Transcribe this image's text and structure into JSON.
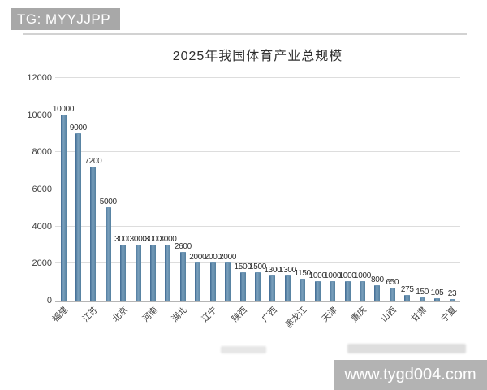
{
  "watermarks": {
    "top": "TG: MYYJJPP",
    "bottom": "www.tygd004.com"
  },
  "chart_data": {
    "type": "bar",
    "title": "2025年我国体育产业总规模",
    "xlabel": "",
    "ylabel": "",
    "ylim": [
      0,
      12000
    ],
    "yticks": [
      0,
      2000,
      4000,
      6000,
      8000,
      10000,
      12000
    ],
    "grid": true,
    "legend_position": "none",
    "bar_color": "#54809f",
    "categories": [
      "福建",
      "",
      "江苏",
      "",
      "北京",
      "",
      "河南",
      "",
      "湖北",
      "",
      "辽宁",
      "",
      "陕西",
      "",
      "广西",
      "",
      "黑龙江",
      "",
      "天津",
      "",
      "重庆",
      "",
      "山西",
      "",
      "甘肃",
      "",
      "宁夏"
    ],
    "values": [
      10000,
      9000,
      7200,
      5000,
      3000,
      3000,
      3000,
      3000,
      2600,
      2000,
      2000,
      2000,
      1500,
      1500,
      1300,
      1300,
      1150,
      1000,
      1000,
      1000,
      1000,
      800,
      650,
      275,
      150,
      105,
      23
    ],
    "value_labels": [
      "10000",
      "9000",
      "7200",
      "5000",
      "3000",
      "3000",
      "3000",
      "3000",
      "2600",
      "2000",
      "2000",
      "2000",
      "1500",
      "1500",
      "1300",
      "1300",
      "1150",
      "1000",
      "1000",
      "1000",
      "1000",
      "800",
      "650",
      "275",
      "150",
      "105",
      "23"
    ]
  }
}
